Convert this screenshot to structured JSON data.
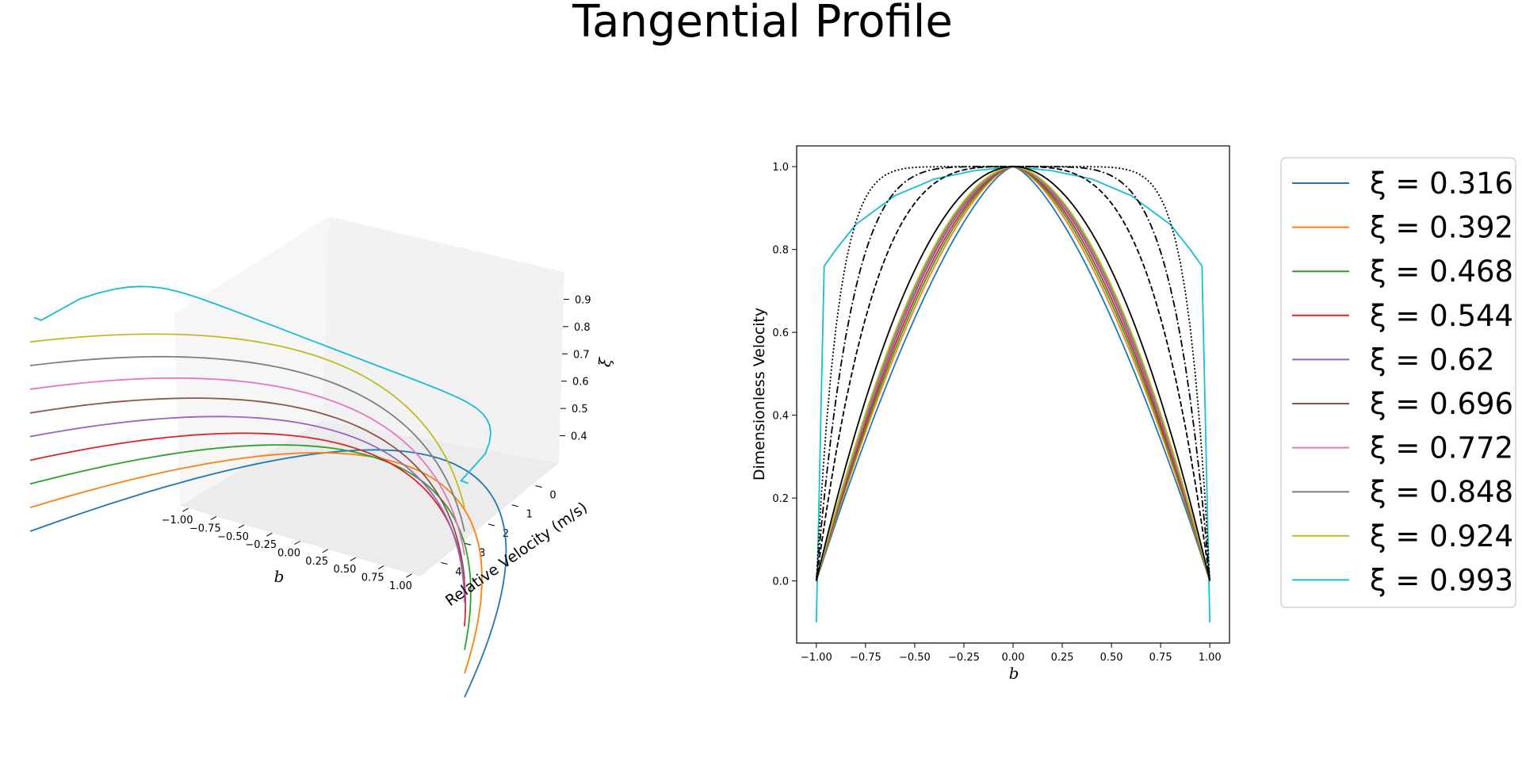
{
  "figure": {
    "title": "Tangential Profile"
  },
  "chart_data": [
    {
      "type": "line3d",
      "xlabel": "b",
      "ylabel": "Relative Velocity (m/s)",
      "zlabel": "ξ",
      "x_ticks": [
        "−1.00",
        "−0.75",
        "−0.50",
        "−0.25",
        "0.00",
        "0.25",
        "0.50",
        "0.75",
        "1.00"
      ],
      "y_ticks": [
        "0",
        "1",
        "2",
        "3",
        "4"
      ],
      "z_ticks": [
        "0.4",
        "0.5",
        "0.6",
        "0.7",
        "0.8",
        "0.9"
      ],
      "xlim": [
        -1.1,
        1.1
      ],
      "ylim": [
        -0.5,
        4.6
      ],
      "zlim": [
        0.3,
        1.0
      ],
      "profile_shape": "parabolic",
      "series": [
        {
          "xi": 0.316,
          "peak_velocity": 4.2,
          "color": "#1f77b4"
        },
        {
          "xi": 0.392,
          "peak_velocity": 3.4,
          "color": "#ff7f0e"
        },
        {
          "xi": 0.468,
          "peak_velocity": 2.9,
          "color": "#2ca02c"
        },
        {
          "xi": 0.544,
          "peak_velocity": 2.5,
          "color": "#d62728"
        },
        {
          "xi": 0.62,
          "peak_velocity": 2.25,
          "color": "#9467bd"
        },
        {
          "xi": 0.696,
          "peak_velocity": 2.05,
          "color": "#8c564b"
        },
        {
          "xi": 0.772,
          "peak_velocity": 1.9,
          "color": "#e377c2"
        },
        {
          "xi": 0.848,
          "peak_velocity": 1.8,
          "color": "#7f7f7f"
        },
        {
          "xi": 0.924,
          "peak_velocity": 1.75,
          "color": "#bcbd22"
        },
        {
          "xi": 0.993,
          "peak_velocity": 1.6,
          "color": "#17becf",
          "flat": true
        }
      ]
    },
    {
      "type": "line",
      "xlabel": "b",
      "ylabel": "Dimensionless Velocity",
      "xlim": [
        -1.1,
        1.1
      ],
      "ylim": [
        -0.15,
        1.05
      ],
      "x_ticks": [
        -1.0,
        -0.75,
        -0.5,
        -0.25,
        0.0,
        0.25,
        0.5,
        0.75,
        1.0
      ],
      "x_tick_labels": [
        "−1.00",
        "−0.75",
        "−0.50",
        "−0.25",
        "0.00",
        "0.25",
        "0.50",
        "0.75",
        "1.00"
      ],
      "y_ticks": [
        0.0,
        0.2,
        0.4,
        0.6,
        0.8,
        1.0
      ],
      "y_tick_labels": [
        "0.0",
        "0.2",
        "0.4",
        "0.6",
        "0.8",
        "1.0"
      ],
      "legend_position": "outside-right",
      "series": [
        {
          "name": "ξ = 0.316",
          "color": "#1f77b4",
          "power_exponent": 1.45
        },
        {
          "name": "ξ = 0.392",
          "color": "#ff7f0e",
          "power_exponent": 1.55
        },
        {
          "name": "ξ = 0.468",
          "color": "#2ca02c",
          "power_exponent": 1.6
        },
        {
          "name": "ξ = 0.544",
          "color": "#d62728",
          "power_exponent": 1.65
        },
        {
          "name": "ξ = 0.62",
          "color": "#9467bd",
          "power_exponent": 1.7
        },
        {
          "name": "ξ = 0.696",
          "color": "#8c564b",
          "power_exponent": 1.72
        },
        {
          "name": "ξ = 0.772",
          "color": "#e377c2",
          "power_exponent": 1.74
        },
        {
          "name": "ξ = 0.848",
          "color": "#7f7f7f",
          "power_exponent": 1.76
        },
        {
          "name": "ξ = 0.924",
          "color": "#bcbd22",
          "power_exponent": 1.8
        },
        {
          "name": "ξ = 0.993",
          "color": "#17becf",
          "points": [
            [
              -1.0,
              -0.1
            ],
            [
              -0.96,
              0.76
            ],
            [
              -0.9,
              0.8
            ],
            [
              -0.8,
              0.86
            ],
            [
              -0.6,
              0.93
            ],
            [
              -0.4,
              0.97
            ],
            [
              -0.2,
              0.99
            ],
            [
              0.0,
              1.0
            ],
            [
              0.2,
              0.99
            ],
            [
              0.4,
              0.97
            ],
            [
              0.6,
              0.93
            ],
            [
              0.8,
              0.86
            ],
            [
              0.9,
              0.8
            ],
            [
              0.96,
              0.76
            ],
            [
              1.0,
              -0.1
            ]
          ]
        }
      ],
      "reference_curves": [
        {
          "style": "solid",
          "color": "#000000",
          "power_exponent": 2
        },
        {
          "style": "dashed",
          "color": "#000000",
          "power_exponent": 3.5
        },
        {
          "style": "dashdot",
          "color": "#000000",
          "power_exponent": 5.5
        },
        {
          "style": "dotted",
          "color": "#000000",
          "power_exponent": 9
        }
      ]
    }
  ]
}
